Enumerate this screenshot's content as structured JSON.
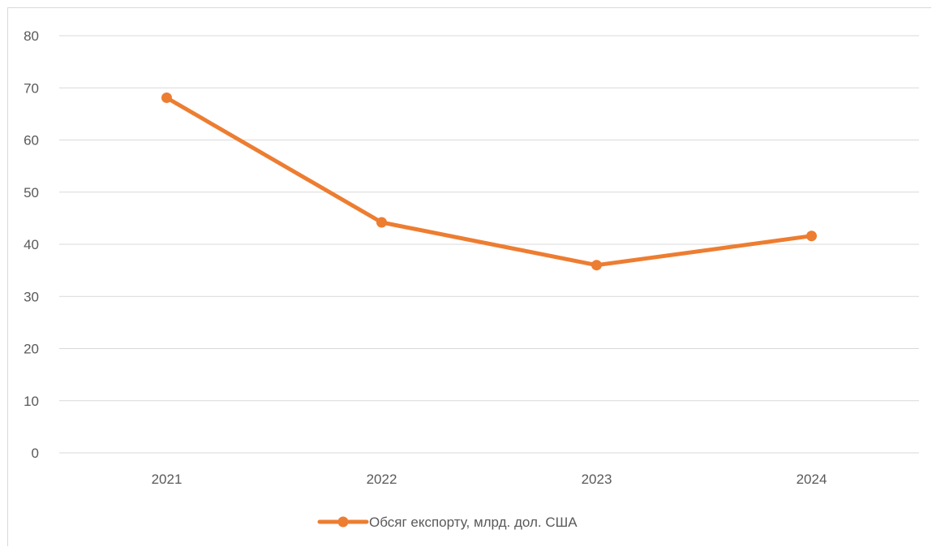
{
  "chart_data": {
    "type": "line",
    "categories": [
      "2021",
      "2022",
      "2023",
      "2024"
    ],
    "series": [
      {
        "name": "Обсяг експорту, млрд. дол. США",
        "values": [
          68.1,
          44.2,
          36.0,
          41.6
        ],
        "color": "#ED7D31"
      }
    ],
    "ylim": [
      0,
      80
    ],
    "y_ticks": [
      "0",
      "10",
      "20",
      "30",
      "40",
      "50",
      "60",
      "70",
      "80"
    ],
    "grid": true,
    "legend_position": "bottom",
    "gridline_color": "#d9d9d9",
    "tick_label_color": "#595959"
  }
}
